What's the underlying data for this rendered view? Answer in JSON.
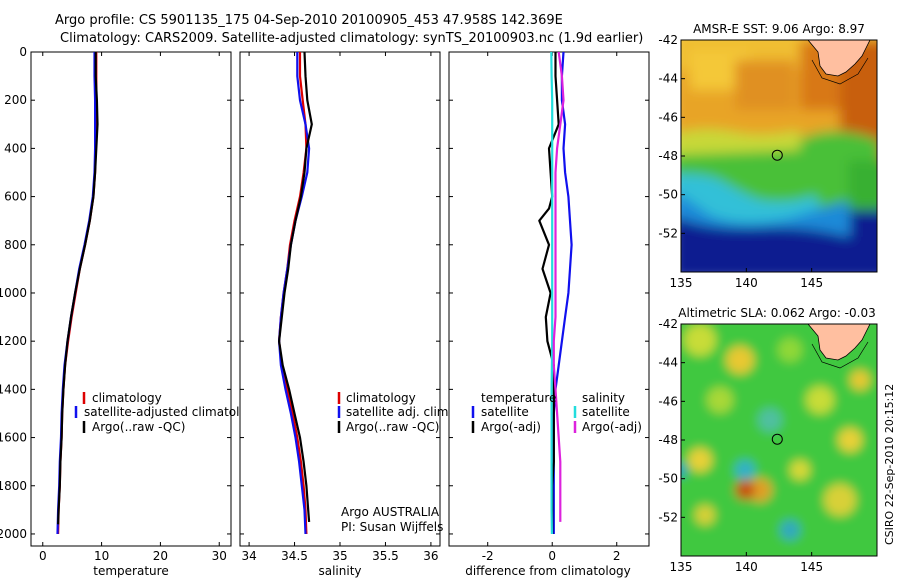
{
  "header": {
    "line1": "Argo profile: CS 5901135_175 04-Sep-2010 20100905_453 47.958S 142.369E",
    "line2": "Climatology: CARS2009. Satellite-adjusted climatology: synTS_20100903.nc (1.9d earlier)"
  },
  "colors": {
    "climatology": "#dd0000",
    "satellite": "#1010ee",
    "argo": "#000000",
    "sat_diff_salinity": "#22dddd",
    "argo_diff_salinity": "#dd22dd",
    "land": "#ffbfa0"
  },
  "chart_data": [
    {
      "type": "line",
      "name": "temperature-profile",
      "xlabel": "temperature",
      "xlim": [
        -2,
        32
      ],
      "xticks": [
        "0",
        "10",
        "20",
        "30"
      ],
      "ylim": [
        0,
        2050
      ],
      "yticks": [
        "0",
        "200",
        "400",
        "600",
        "800",
        "1000",
        "1200",
        "1400",
        "1600",
        "1800",
        "2000"
      ],
      "legend": [
        "climatology",
        "satellite-adjusted climatology",
        "Argo(..raw -QC)"
      ],
      "series": [
        {
          "name": "climatology",
          "color_key": "climatology",
          "points": [
            [
              9.1,
              0
            ],
            [
              9.1,
              100
            ],
            [
              9.1,
              200
            ],
            [
              9.0,
              300
            ],
            [
              9.0,
              400
            ],
            [
              8.9,
              500
            ],
            [
              8.6,
              600
            ],
            [
              8.0,
              700
            ],
            [
              7.2,
              800
            ],
            [
              6.3,
              900
            ],
            [
              5.6,
              1000
            ],
            [
              4.9,
              1100
            ],
            [
              4.3,
              1200
            ],
            [
              3.8,
              1300
            ],
            [
              3.5,
              1400
            ],
            [
              3.3,
              1500
            ],
            [
              3.2,
              1600
            ],
            [
              3.0,
              1700
            ],
            [
              2.9,
              1800
            ],
            [
              2.7,
              1900
            ],
            [
              2.6,
              2000
            ]
          ]
        },
        {
          "name": "satellite-adjusted climatology",
          "color_key": "satellite",
          "points": [
            [
              8.8,
              0
            ],
            [
              8.8,
              100
            ],
            [
              8.9,
              200
            ],
            [
              8.9,
              300
            ],
            [
              8.9,
              400
            ],
            [
              8.8,
              500
            ],
            [
              8.5,
              600
            ],
            [
              7.9,
              700
            ],
            [
              7.1,
              800
            ],
            [
              6.2,
              900
            ],
            [
              5.5,
              1000
            ],
            [
              4.8,
              1100
            ],
            [
              4.2,
              1200
            ],
            [
              3.7,
              1300
            ],
            [
              3.4,
              1400
            ],
            [
              3.2,
              1500
            ],
            [
              3.1,
              1600
            ],
            [
              2.9,
              1700
            ],
            [
              2.8,
              1800
            ],
            [
              2.6,
              1900
            ],
            [
              2.5,
              2000
            ]
          ]
        },
        {
          "name": "Argo(..raw -QC)",
          "color_key": "argo",
          "points": [
            [
              9.0,
              0
            ],
            [
              9.0,
              100
            ],
            [
              9.2,
              200
            ],
            [
              9.3,
              300
            ],
            [
              9.1,
              400
            ],
            [
              8.9,
              500
            ],
            [
              8.6,
              600
            ],
            [
              8.0,
              700
            ],
            [
              7.2,
              800
            ],
            [
              6.3,
              900
            ],
            [
              5.5,
              1000
            ],
            [
              4.8,
              1100
            ],
            [
              4.2,
              1200
            ],
            [
              3.8,
              1300
            ],
            [
              3.5,
              1400
            ],
            [
              3.3,
              1500
            ],
            [
              3.2,
              1600
            ],
            [
              3.0,
              1700
            ],
            [
              2.9,
              1800
            ],
            [
              2.7,
              1900
            ],
            [
              2.6,
              1960
            ]
          ]
        }
      ]
    },
    {
      "type": "line",
      "name": "salinity-profile",
      "xlabel": "salinity",
      "xlim": [
        33.9,
        36.1
      ],
      "xticks": [
        "34",
        "34.5",
        "35",
        "35.5",
        "36"
      ],
      "ylim": [
        0,
        2050
      ],
      "legend": [
        "climatology",
        "satellite adj. clim.",
        "Argo(..raw -QC)"
      ],
      "annotation": [
        "Argo AUSTRALIA",
        "PI: Susan Wijffels"
      ],
      "series": [
        {
          "name": "climatology",
          "color_key": "climatology",
          "points": [
            [
              34.56,
              0
            ],
            [
              34.56,
              100
            ],
            [
              34.59,
              200
            ],
            [
              34.62,
              300
            ],
            [
              34.63,
              400
            ],
            [
              34.6,
              500
            ],
            [
              34.56,
              600
            ],
            [
              34.5,
              700
            ],
            [
              34.45,
              800
            ],
            [
              34.42,
              900
            ],
            [
              34.38,
              1000
            ],
            [
              34.35,
              1100
            ],
            [
              34.33,
              1200
            ],
            [
              34.36,
              1300
            ],
            [
              34.42,
              1400
            ],
            [
              34.48,
              1500
            ],
            [
              34.53,
              1600
            ],
            [
              34.57,
              1700
            ],
            [
              34.6,
              1800
            ],
            [
              34.62,
              1900
            ],
            [
              34.63,
              2000
            ]
          ]
        },
        {
          "name": "satellite adj. clim.",
          "color_key": "satellite",
          "points": [
            [
              34.53,
              0
            ],
            [
              34.53,
              100
            ],
            [
              34.56,
              200
            ],
            [
              34.62,
              300
            ],
            [
              34.66,
              400
            ],
            [
              34.64,
              500
            ],
            [
              34.58,
              600
            ],
            [
              34.51,
              700
            ],
            [
              34.46,
              800
            ],
            [
              34.42,
              900
            ],
            [
              34.38,
              1000
            ],
            [
              34.35,
              1100
            ],
            [
              34.33,
              1200
            ],
            [
              34.35,
              1300
            ],
            [
              34.4,
              1400
            ],
            [
              34.46,
              1500
            ],
            [
              34.51,
              1600
            ],
            [
              34.55,
              1700
            ],
            [
              34.58,
              1800
            ],
            [
              34.61,
              1900
            ],
            [
              34.62,
              2000
            ]
          ]
        },
        {
          "name": "Argo(..raw -QC)",
          "color_key": "argo",
          "points": [
            [
              34.61,
              0
            ],
            [
              34.62,
              100
            ],
            [
              34.64,
              200
            ],
            [
              34.69,
              300
            ],
            [
              34.63,
              400
            ],
            [
              34.61,
              500
            ],
            [
              34.57,
              600
            ],
            [
              34.51,
              700
            ],
            [
              34.46,
              800
            ],
            [
              34.43,
              900
            ],
            [
              34.39,
              1000
            ],
            [
              34.36,
              1100
            ],
            [
              34.33,
              1200
            ],
            [
              34.37,
              1300
            ],
            [
              34.44,
              1400
            ],
            [
              34.5,
              1500
            ],
            [
              34.56,
              1600
            ],
            [
              34.6,
              1700
            ],
            [
              34.63,
              1800
            ],
            [
              34.65,
              1900
            ],
            [
              34.66,
              1950
            ]
          ]
        }
      ]
    },
    {
      "type": "line",
      "name": "difference-profile",
      "xlabel": "difference from climatology",
      "xlim": [
        -3.2,
        3.0
      ],
      "xticks": [
        "-2",
        "0",
        "2"
      ],
      "ylim": [
        0,
        2050
      ],
      "legend_headers": [
        "temperature",
        "salinity"
      ],
      "legend": [
        "satellite",
        "Argo(-adj)",
        "satellite",
        "Argo(-adj)"
      ],
      "series": [
        {
          "name": "temperature satellite",
          "color_key": "satellite",
          "points": [
            [
              0.35,
              0
            ],
            [
              0.3,
              100
            ],
            [
              0.3,
              200
            ],
            [
              0.4,
              300
            ],
            [
              0.35,
              400
            ],
            [
              0.4,
              500
            ],
            [
              0.5,
              600
            ],
            [
              0.55,
              700
            ],
            [
              0.6,
              800
            ],
            [
              0.55,
              900
            ],
            [
              0.5,
              1000
            ],
            [
              0.4,
              1100
            ],
            [
              0.3,
              1200
            ],
            [
              0.2,
              1300
            ],
            [
              0.1,
              1400
            ],
            [
              0.05,
              1500
            ],
            [
              0.05,
              1600
            ],
            [
              0.05,
              1700
            ],
            [
              0.05,
              1800
            ],
            [
              0.05,
              1900
            ],
            [
              0.05,
              2000
            ]
          ]
        },
        {
          "name": "temperature Argo(-adj)",
          "color_key": "argo",
          "points": [
            [
              0.1,
              0
            ],
            [
              0.1,
              100
            ],
            [
              0.15,
              200
            ],
            [
              0.2,
              300
            ],
            [
              -0.1,
              400
            ],
            [
              -0.05,
              500
            ],
            [
              0.0,
              600
            ],
            [
              -0.1,
              650
            ],
            [
              -0.4,
              700
            ],
            [
              -0.1,
              800
            ],
            [
              -0.3,
              900
            ],
            [
              -0.05,
              1000
            ],
            [
              -0.2,
              1100
            ],
            [
              -0.15,
              1200
            ],
            [
              0.05,
              1300
            ],
            [
              0.05,
              1400
            ],
            [
              0.05,
              1500
            ],
            [
              0.05,
              1600
            ],
            [
              0.05,
              1700
            ],
            [
              0.0,
              1800
            ],
            [
              0.0,
              1900
            ],
            [
              0.0,
              2000
            ]
          ]
        },
        {
          "name": "salinity satellite",
          "color_key": "sat_diff_salinity",
          "points": [
            [
              -0.03,
              0
            ],
            [
              -0.02,
              100
            ],
            [
              0.0,
              200
            ],
            [
              0.0,
              300
            ],
            [
              0.0,
              400
            ],
            [
              0.0,
              500
            ],
            [
              0.0,
              600
            ],
            [
              0.0,
              700
            ],
            [
              0.0,
              800
            ],
            [
              0.0,
              900
            ],
            [
              0.0,
              1000
            ],
            [
              0.0,
              1100
            ],
            [
              0.0,
              1200
            ],
            [
              -0.01,
              1300
            ],
            [
              -0.02,
              1400
            ],
            [
              -0.02,
              1500
            ],
            [
              -0.02,
              1600
            ],
            [
              -0.02,
              1700
            ],
            [
              -0.02,
              1800
            ],
            [
              -0.02,
              1900
            ],
            [
              -0.01,
              2000
            ]
          ]
        },
        {
          "name": "salinity Argo(-adj)",
          "color_key": "argo_diff_salinity",
          "points": [
            [
              0.2,
              0
            ],
            [
              0.3,
              100
            ],
            [
              0.35,
              200
            ],
            [
              0.25,
              300
            ],
            [
              0.15,
              400
            ],
            [
              0.1,
              500
            ],
            [
              0.1,
              600
            ],
            [
              0.1,
              700
            ],
            [
              0.1,
              800
            ],
            [
              0.1,
              900
            ],
            [
              0.1,
              1000
            ],
            [
              0.1,
              1100
            ],
            [
              0.05,
              1200
            ],
            [
              0.05,
              1300
            ],
            [
              0.1,
              1400
            ],
            [
              0.15,
              1500
            ],
            [
              0.2,
              1600
            ],
            [
              0.25,
              1700
            ],
            [
              0.25,
              1800
            ],
            [
              0.25,
              1900
            ],
            [
              0.25,
              1950
            ]
          ]
        }
      ]
    },
    {
      "type": "heatmap",
      "name": "amsre-sst-map",
      "title": "AMSR-E SST: 9.06 Argo: 8.97",
      "xlim": [
        135,
        150
      ],
      "ylim": [
        -54,
        -42
      ],
      "xticks": [
        "135",
        "140",
        "145"
      ],
      "yticks": [
        "-42",
        "-44",
        "-46",
        "-48",
        "-50",
        "-52"
      ],
      "float_position": [
        142.369,
        -47.958
      ]
    },
    {
      "type": "heatmap",
      "name": "altimetric-sla-map",
      "title": "Altimetric SLA: 0.062 Argo: -0.03",
      "xlim": [
        135,
        150
      ],
      "ylim": [
        -54,
        -42
      ],
      "xticks": [
        "135",
        "140",
        "145"
      ],
      "yticks": [
        "-42",
        "-44",
        "-46",
        "-48",
        "-50",
        "-52"
      ],
      "float_position": [
        142.369,
        -47.958
      ]
    }
  ],
  "footer": {
    "stamp": "CSIRO 22-Sep-2010 20:15:12"
  }
}
